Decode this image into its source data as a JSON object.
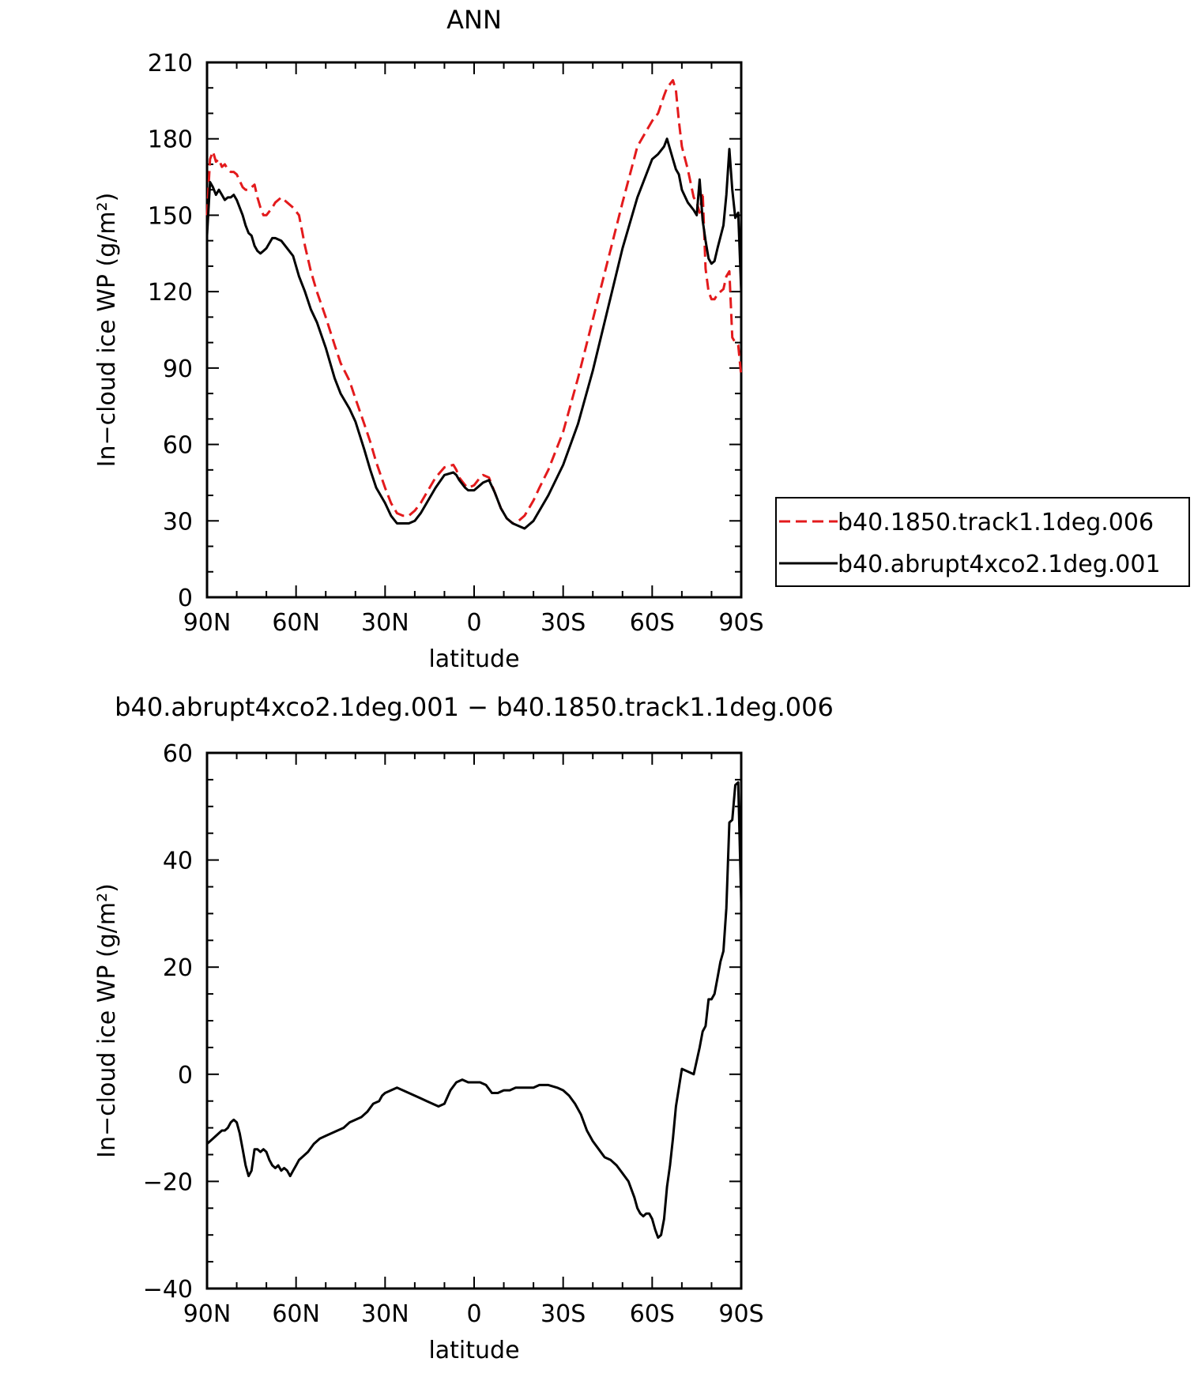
{
  "chart_data": [
    {
      "type": "line",
      "title": "ANN",
      "xlabel": "latitude",
      "ylabel": "In−cloud ice WP",
      "ylabel_units": "(g/m²)",
      "xlim": [
        90,
        -90
      ],
      "ylim": [
        0,
        210
      ],
      "xticks": [
        {
          "value": 90,
          "label": "90N"
        },
        {
          "value": 60,
          "label": "60N"
        },
        {
          "value": 30,
          "label": "30N"
        },
        {
          "value": 0,
          "label": "0"
        },
        {
          "value": -30,
          "label": "30S"
        },
        {
          "value": -60,
          "label": "60S"
        },
        {
          "value": -90,
          "label": "90S"
        }
      ],
      "yticks": [
        0,
        30,
        60,
        90,
        120,
        150,
        180,
        210
      ],
      "legend": "outside-right",
      "series": [
        {
          "name": "b40.1850.track1.1deg.006",
          "color": "#e31a1c",
          "dash": "dashed",
          "x": [
            90,
            89,
            88,
            87,
            86,
            85,
            84,
            83,
            82,
            81,
            80,
            78,
            77,
            76,
            75,
            74,
            73,
            72,
            71,
            70,
            68,
            67,
            65,
            63,
            61,
            59,
            57,
            55,
            53,
            50,
            47,
            45,
            42,
            40,
            37,
            35,
            33,
            30,
            28,
            26,
            24,
            22,
            20,
            18,
            16,
            13,
            10,
            7,
            6,
            5,
            3,
            2,
            0,
            -2,
            -3,
            -5,
            -7,
            -9,
            -11,
            -13,
            -15,
            -17,
            -18,
            -20,
            -22,
            -25,
            -30,
            -35,
            -40,
            -45,
            -50,
            -55,
            -60,
            -62,
            -64,
            -65,
            -67,
            -68,
            -69,
            -70,
            -72,
            -74,
            -75,
            -76,
            -77,
            -78,
            -79,
            -80,
            -81,
            -82,
            -84,
            -85,
            -86,
            -87,
            -88,
            -89,
            -90
          ],
          "y": [
            150,
            172,
            175,
            171,
            172,
            169,
            170,
            168,
            167,
            167,
            166,
            161,
            160,
            160,
            161,
            162,
            157,
            153,
            150,
            150,
            153,
            155,
            157,
            155,
            153,
            150,
            138,
            128,
            120,
            110,
            99,
            92,
            85,
            78,
            68,
            61,
            53,
            43,
            37,
            33,
            32,
            32,
            34,
            37,
            41,
            47,
            51,
            52,
            50,
            47,
            44,
            43,
            44,
            47,
            48,
            47,
            41,
            35,
            31,
            29,
            30,
            32,
            34,
            38,
            43,
            50,
            65,
            86,
            109,
            132,
            155,
            177,
            187,
            190,
            197,
            200,
            203,
            199,
            187,
            177,
            168,
            157,
            155,
            151,
            159,
            129,
            120,
            117,
            117,
            119,
            121,
            126,
            128,
            102,
            100,
            99,
            87
          ]
        },
        {
          "name": "b40.abrupt4xco2.1deg.001",
          "color": "#000000",
          "dash": "solid",
          "x": [
            90,
            89,
            88,
            87,
            86,
            85,
            84,
            83,
            82,
            81,
            80,
            78,
            77,
            76,
            75,
            74,
            73,
            72,
            71,
            70,
            68,
            67,
            65,
            63,
            61,
            59,
            57,
            55,
            53,
            50,
            47,
            45,
            42,
            40,
            37,
            35,
            33,
            30,
            28,
            26,
            24,
            22,
            20,
            18,
            16,
            13,
            10,
            7,
            6,
            5,
            3,
            2,
            0,
            -2,
            -3,
            -5,
            -7,
            -9,
            -11,
            -13,
            -15,
            -17,
            -18,
            -20,
            -22,
            -25,
            -30,
            -35,
            -40,
            -45,
            -50,
            -55,
            -60,
            -62,
            -64,
            -65,
            -67,
            -68,
            -69,
            -70,
            -72,
            -74,
            -75,
            -76,
            -77,
            -78,
            -79,
            -80,
            -81,
            -82,
            -84,
            -85,
            -86,
            -87,
            -88,
            -89,
            -90
          ],
          "y": [
            142,
            163,
            161,
            158,
            160,
            158,
            156,
            157,
            157,
            158,
            156,
            150,
            146,
            143,
            142,
            138,
            136,
            135,
            136,
            137,
            141,
            141,
            140,
            137,
            134,
            126,
            120,
            113,
            108,
            98,
            86,
            80,
            74,
            69,
            58,
            50,
            43,
            37,
            32,
            29,
            29,
            29,
            30,
            33,
            37,
            43,
            48,
            49,
            48,
            46,
            43,
            42,
            42,
            44,
            45,
            46,
            41,
            35,
            31,
            29,
            28,
            27,
            28,
            30,
            34,
            40,
            52,
            68,
            89,
            113,
            137,
            157,
            172,
            174,
            177,
            180,
            172,
            168,
            166,
            160,
            155,
            152,
            150,
            164,
            148,
            140,
            133,
            131,
            132,
            137,
            146,
            158,
            176,
            160,
            149,
            151,
            120
          ]
        }
      ]
    },
    {
      "type": "line",
      "title": "b40.abrupt4xco2.1deg.001 − b40.1850.track1.1deg.006",
      "xlabel": "latitude",
      "ylabel": "In−cloud ice WP",
      "ylabel_units": "(g/m²)",
      "xlim": [
        90,
        -90
      ],
      "ylim": [
        -40,
        60
      ],
      "xticks": [
        {
          "value": 90,
          "label": "90N"
        },
        {
          "value": 60,
          "label": "60N"
        },
        {
          "value": 30,
          "label": "30N"
        },
        {
          "value": 0,
          "label": "0"
        },
        {
          "value": -30,
          "label": "30S"
        },
        {
          "value": -60,
          "label": "60S"
        },
        {
          "value": -90,
          "label": "90S"
        }
      ],
      "yticks": [
        -40,
        -20,
        0,
        20,
        40,
        60
      ],
      "series": [
        {
          "name": "",
          "color": "#000000",
          "dash": "solid",
          "x": [
            90,
            88,
            86,
            85,
            84,
            83,
            82,
            81,
            80,
            79,
            78,
            77,
            76,
            75,
            74,
            73,
            72,
            71,
            70,
            69,
            68,
            67,
            66,
            65,
            64,
            63,
            62,
            61,
            60,
            59,
            58,
            56,
            54,
            52,
            50,
            48,
            46,
            44,
            42,
            40,
            38,
            36,
            34,
            32,
            31,
            30,
            28,
            26,
            24,
            22,
            20,
            18,
            16,
            14,
            12,
            10,
            8,
            6,
            4,
            2,
            0,
            -2,
            -4,
            -6,
            -8,
            -10,
            -12,
            -14,
            -16,
            -18,
            -20,
            -22,
            -25,
            -28,
            -30,
            -32,
            -34,
            -36,
            -38,
            -40,
            -42,
            -44,
            -46,
            -48,
            -50,
            -52,
            -54,
            -55,
            -56,
            -57,
            -58,
            -59,
            -60,
            -61,
            -62,
            -63,
            -64,
            -65,
            -66,
            -67,
            -68,
            -70,
            -72,
            -74,
            -76,
            -77,
            -78,
            -79,
            -80,
            -81,
            -82,
            -83,
            -84,
            -85,
            -86,
            -87,
            -88,
            -89,
            -90
          ],
          "y": [
            -13,
            -12,
            -11,
            -10.5,
            -10.5,
            -10,
            -9,
            -8.5,
            -9,
            -11,
            -14,
            -17,
            -19,
            -18,
            -14,
            -14,
            -14.5,
            -14,
            -14.5,
            -16,
            -17,
            -17.5,
            -17,
            -18,
            -17.5,
            -18,
            -19,
            -18,
            -17,
            -16,
            -15.5,
            -14.5,
            -13,
            -12,
            -11.5,
            -11,
            -10.5,
            -10,
            -9,
            -8.5,
            -8,
            -7,
            -5.5,
            -5,
            -4,
            -3.5,
            -3,
            -2.5,
            -3,
            -3.5,
            -4,
            -4.5,
            -5,
            -5.5,
            -6,
            -5.5,
            -3,
            -1.5,
            -1,
            -1.5,
            -1.5,
            -1.5,
            -2,
            -3.5,
            -3.5,
            -3,
            -3,
            -2.5,
            -2.5,
            -2.5,
            -2.5,
            -2,
            -2,
            -2.5,
            -3,
            -4,
            -5.5,
            -7.5,
            -10.5,
            -12.5,
            -14,
            -15.5,
            -16,
            -17,
            -18.5,
            -20,
            -23,
            -25,
            -26,
            -26.5,
            -26,
            -26,
            -27,
            -29,
            -30.5,
            -30,
            -27,
            -21,
            -17,
            -12,
            -6,
            1,
            0.5,
            0,
            5,
            8,
            9,
            14,
            14,
            15,
            18,
            21,
            23,
            31,
            47,
            47.5,
            54,
            54.5,
            32
          ]
        }
      ]
    }
  ]
}
